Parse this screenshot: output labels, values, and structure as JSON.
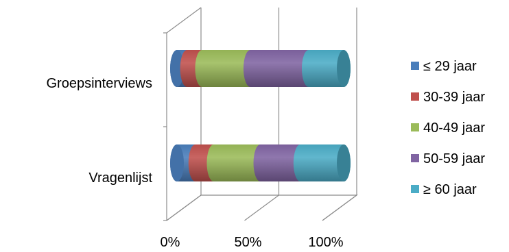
{
  "chart_data": {
    "type": "bar",
    "orientation": "horizontal",
    "stacked": "percent",
    "style": "3d-cylinder",
    "categories": [
      "Groepsinterviews",
      "Vragenlijst"
    ],
    "series": [
      {
        "name": "≤ 29 jaar",
        "color": "#4a7ebb",
        "values": [
          6,
          11
        ]
      },
      {
        "name": "30-39 jaar",
        "color": "#c0504d",
        "values": [
          9,
          11
        ]
      },
      {
        "name": "40-49 jaar",
        "color": "#9bbb59",
        "values": [
          29,
          28
        ]
      },
      {
        "name": "50-59 jaar",
        "color": "#8064a2",
        "values": [
          35,
          24
        ]
      },
      {
        "name": "≥ 60 jaar",
        "color": "#4bacc6",
        "values": [
          21,
          26
        ]
      }
    ],
    "x_ticks": [
      "0%",
      "50%",
      "100%"
    ],
    "xlim": [
      0,
      100
    ],
    "grid": true,
    "legend_position": "right",
    "title": "",
    "xlabel": "",
    "ylabel": ""
  }
}
